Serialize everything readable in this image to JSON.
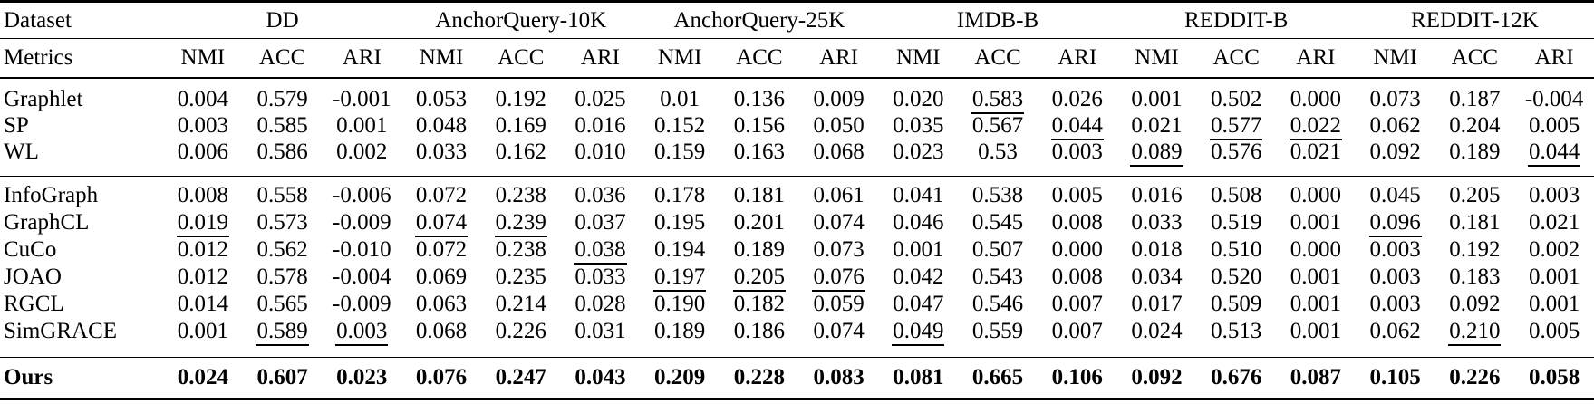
{
  "table": {
    "dataset_label": "Dataset",
    "metrics_label": "Metrics",
    "metric_names": [
      "NMI",
      "ACC",
      "ARI"
    ],
    "datasets": [
      "DD",
      "AnchorQuery-10K",
      "AnchorQuery-25K",
      "IMDB-B",
      "REDDIT-B",
      "REDDIT-12K"
    ],
    "groups": [
      {
        "name": "kernel-methods",
        "rows": [
          {
            "label": "Graphlet",
            "bold": false,
            "values": [
              "0.004",
              "0.579",
              "-0.001",
              "0.053",
              "0.192",
              "0.025",
              "0.01",
              "0.136",
              "0.009",
              "0.020",
              "0.583",
              "0.026",
              "0.001",
              "0.502",
              "0.000",
              "0.073",
              "0.187",
              "-0.004"
            ],
            "underlined": [
              10
            ]
          },
          {
            "label": "SP",
            "bold": false,
            "values": [
              "0.003",
              "0.585",
              "0.001",
              "0.048",
              "0.169",
              "0.016",
              "0.152",
              "0.156",
              "0.050",
              "0.035",
              "0.567",
              "0.044",
              "0.021",
              "0.577",
              "0.022",
              "0.062",
              "0.204",
              "0.005"
            ],
            "underlined": [
              11,
              13,
              14
            ]
          },
          {
            "label": "WL",
            "bold": false,
            "values": [
              "0.006",
              "0.586",
              "0.002",
              "0.033",
              "0.162",
              "0.010",
              "0.159",
              "0.163",
              "0.068",
              "0.023",
              "0.53",
              "0.003",
              "0.089",
              "0.576",
              "0.021",
              "0.092",
              "0.189",
              "0.044"
            ],
            "underlined": [
              12,
              17
            ]
          }
        ]
      },
      {
        "name": "contrastive-methods",
        "rows": [
          {
            "label": "InfoGraph",
            "bold": false,
            "values": [
              "0.008",
              "0.558",
              "-0.006",
              "0.072",
              "0.238",
              "0.036",
              "0.178",
              "0.181",
              "0.061",
              "0.041",
              "0.538",
              "0.005",
              "0.016",
              "0.508",
              "0.000",
              "0.045",
              "0.205",
              "0.003"
            ],
            "underlined": []
          },
          {
            "label": "GraphCL",
            "bold": false,
            "values": [
              "0.019",
              "0.573",
              "-0.009",
              "0.074",
              "0.239",
              "0.037",
              "0.195",
              "0.201",
              "0.074",
              "0.046",
              "0.545",
              "0.008",
              "0.033",
              "0.519",
              "0.001",
              "0.096",
              "0.181",
              "0.021"
            ],
            "underlined": [
              0,
              3,
              4,
              15
            ]
          },
          {
            "label": "CuCo",
            "bold": false,
            "values": [
              "0.012",
              "0.562",
              "-0.010",
              "0.072",
              "0.238",
              "0.038",
              "0.194",
              "0.189",
              "0.073",
              "0.001",
              "0.507",
              "0.000",
              "0.018",
              "0.510",
              "0.000",
              "0.003",
              "0.192",
              "0.002"
            ],
            "underlined": [
              5
            ]
          },
          {
            "label": "JOAO",
            "bold": false,
            "values": [
              "0.012",
              "0.578",
              "-0.004",
              "0.069",
              "0.235",
              "0.033",
              "0.197",
              "0.205",
              "0.076",
              "0.042",
              "0.543",
              "0.008",
              "0.034",
              "0.520",
              "0.001",
              "0.003",
              "0.183",
              "0.001"
            ],
            "underlined": [
              6,
              7,
              8
            ]
          },
          {
            "label": "RGCL",
            "bold": false,
            "values": [
              "0.014",
              "0.565",
              "-0.009",
              "0.063",
              "0.214",
              "0.028",
              "0.190",
              "0.182",
              "0.059",
              "0.047",
              "0.546",
              "0.007",
              "0.017",
              "0.509",
              "0.001",
              "0.003",
              "0.092",
              "0.001"
            ],
            "underlined": []
          },
          {
            "label": "SimGRACE",
            "bold": false,
            "values": [
              "0.001",
              "0.589",
              "0.003",
              "0.068",
              "0.226",
              "0.031",
              "0.189",
              "0.186",
              "0.074",
              "0.049",
              "0.559",
              "0.007",
              "0.024",
              "0.513",
              "0.001",
              "0.062",
              "0.210",
              "0.005"
            ],
            "underlined": [
              1,
              2,
              9,
              16
            ]
          }
        ]
      },
      {
        "name": "ours",
        "rows": [
          {
            "label": "Ours",
            "bold": true,
            "values": [
              "0.024",
              "0.607",
              "0.023",
              "0.076",
              "0.247",
              "0.043",
              "0.209",
              "0.228",
              "0.083",
              "0.081",
              "0.665",
              "0.106",
              "0.092",
              "0.676",
              "0.087",
              "0.105",
              "0.226",
              "0.058"
            ],
            "underlined": []
          }
        ]
      }
    ]
  }
}
